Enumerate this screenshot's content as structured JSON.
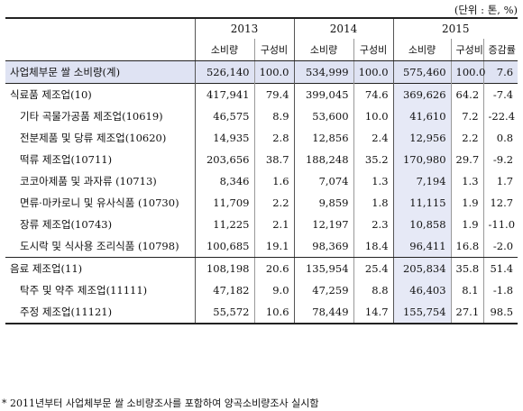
{
  "unit": "(단위 : 톤, %)",
  "years": [
    "2013",
    "2014",
    "2015"
  ],
  "columns": {
    "consumption": "소비량",
    "share": "구성비",
    "change": "증감률"
  },
  "rows": [
    {
      "label": "사업체부문 쌀 소비량(계)",
      "v13": "526,140",
      "s13": "100.0",
      "v14": "534,999",
      "s14": "100.0",
      "v15": "575,460",
      "s15": "100.0",
      "chg": "7.6"
    },
    {
      "label": "식료품 제조업(10)",
      "v13": "417,941",
      "s13": "79.4",
      "v14": "399,045",
      "s14": "74.6",
      "v15": "369,626",
      "s15": "64.2",
      "chg": "-7.4"
    },
    {
      "label": "기타 곡물가공품 제조업(10619)",
      "v13": "46,575",
      "s13": "8.9",
      "v14": "53,600",
      "s14": "10.0",
      "v15": "41,610",
      "s15": "7.2",
      "chg": "-22.4"
    },
    {
      "label": "전분제품 및 당류 제조업(10620)",
      "v13": "14,935",
      "s13": "2.8",
      "v14": "12,856",
      "s14": "2.4",
      "v15": "12,956",
      "s15": "2.2",
      "chg": "0.8"
    },
    {
      "label": "떡류 제조업(10711)",
      "v13": "203,656",
      "s13": "38.7",
      "v14": "188,248",
      "s14": "35.2",
      "v15": "170,980",
      "s15": "29.7",
      "chg": "-9.2"
    },
    {
      "label": "코코아제품 및 과자류 (10713)",
      "v13": "8,346",
      "s13": "1.6",
      "v14": "7,074",
      "s14": "1.3",
      "v15": "7,194",
      "s15": "1.3",
      "chg": "1.7"
    },
    {
      "label": "면류·마카로니 및 유사식품 (10730)",
      "v13": "11,709",
      "s13": "2.2",
      "v14": "9,859",
      "s14": "1.8",
      "v15": "11,115",
      "s15": "1.9",
      "chg": "12.7"
    },
    {
      "label": "장류 제조업(10743)",
      "v13": "11,225",
      "s13": "2.1",
      "v14": "12,197",
      "s14": "2.3",
      "v15": "10,858",
      "s15": "1.9",
      "chg": "-11.0"
    },
    {
      "label": "도시락 및 식사용 조리식품 (10798)",
      "v13": "100,685",
      "s13": "19.1",
      "v14": "98,369",
      "s14": "18.4",
      "v15": "96,411",
      "s15": "16.8",
      "chg": "-2.0"
    },
    {
      "label": "음료 제조업(11)",
      "v13": "108,198",
      "s13": "20.6",
      "v14": "135,954",
      "s14": "25.4",
      "v15": "205,834",
      "s15": "35.8",
      "chg": "51.4"
    },
    {
      "label": "탁주 및 약주 제조업(11111)",
      "v13": "47,182",
      "s13": "9.0",
      "v14": "47,259",
      "s14": "8.8",
      "v15": "46,403",
      "s15": "8.1",
      "chg": "-1.8"
    },
    {
      "label": "주정 제조업(11121)",
      "v13": "55,572",
      "s13": "10.6",
      "v14": "78,449",
      "s14": "14.7",
      "v15": "155,754",
      "s15": "27.1",
      "chg": "98.5"
    }
  ],
  "footnote": "* 2011년부터 사업체부문 쌀 소비량조사를 포함하여 양곡소비량조사 실시함"
}
